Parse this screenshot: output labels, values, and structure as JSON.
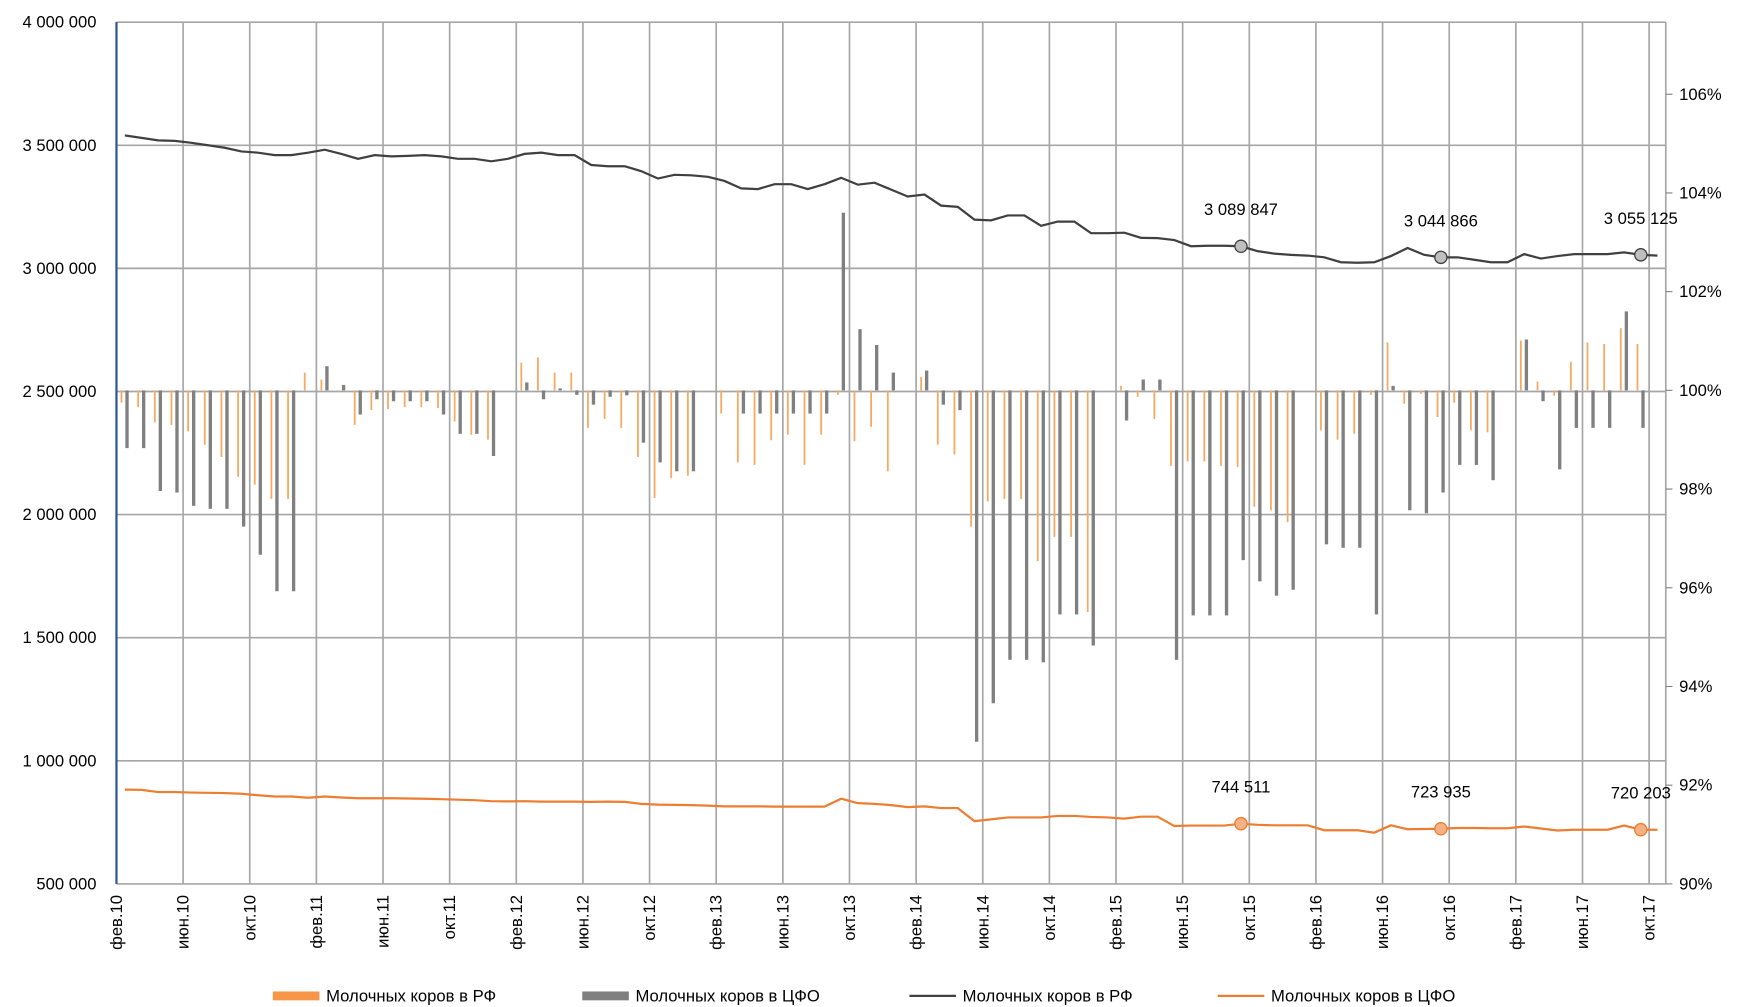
{
  "chart_data": {
    "type": "bar",
    "categories": [
      "фев.10",
      null,
      null,
      null,
      "июн.10",
      null,
      null,
      null,
      "окт.10",
      null,
      null,
      null,
      "фев.11",
      null,
      null,
      null,
      "июн.11",
      null,
      null,
      null,
      "окт.11",
      null,
      null,
      null,
      "фев.12",
      null,
      null,
      null,
      "июн.12",
      null,
      null,
      null,
      "окт.12",
      null,
      null,
      null,
      "фев.13",
      null,
      null,
      null,
      "июн.13",
      null,
      null,
      null,
      "окт.13",
      null,
      null,
      null,
      "фев.14",
      null,
      null,
      null,
      "июн.14",
      null,
      null,
      null,
      "окт.14",
      null,
      null,
      null,
      "фев.15",
      null,
      null,
      null,
      "июн.15",
      null,
      null,
      null,
      "окт.15",
      null,
      null,
      null,
      "фев.16",
      null,
      null,
      null,
      "июн.16",
      null,
      null,
      null,
      "окт.16",
      null,
      null,
      null,
      "фев.17",
      null,
      null,
      null,
      "июн.17",
      null,
      null,
      null,
      "окт.17"
    ],
    "ylim": [
      500000,
      4000000
    ],
    "yticks": [
      {
        "value": 500000,
        "label": "500 000"
      },
      {
        "value": 1000000,
        "label": "1 000 000"
      },
      {
        "value": 1500000,
        "label": "1 500 000"
      },
      {
        "value": 2000000,
        "label": "2 000 000"
      },
      {
        "value": 2500000,
        "label": "2 500 000"
      },
      {
        "value": 3000000,
        "label": "3 000 000"
      },
      {
        "value": 3500000,
        "label": "3 500 000"
      },
      {
        "value": 4000000,
        "label": "4 000 000"
      }
    ],
    "y2lim": [
      90,
      107.46
    ],
    "y2ticks": [
      {
        "value": 90,
        "label": "90%"
      },
      {
        "value": 92,
        "label": "92%"
      },
      {
        "value": 94,
        "label": "94%"
      },
      {
        "value": 96,
        "label": "96%"
      },
      {
        "value": 98,
        "label": "98%"
      },
      {
        "value": 100,
        "label": "100%"
      },
      {
        "value": 102,
        "label": "102%"
      },
      {
        "value": 104,
        "label": "104%"
      },
      {
        "value": 106,
        "label": "106%"
      }
    ],
    "grid": true,
    "legend": "bottom",
    "series": [
      {
        "name": "Молочных коров в РФ",
        "type": "bar",
        "axis": "y2",
        "color": "#f8a95f",
        "values": [
          99.75,
          99.66,
          99.35,
          99.3,
          99.17,
          98.9,
          98.65,
          98.25,
          98.09,
          97.8,
          97.8,
          100.36,
          100.22,
          99.98,
          99.3,
          99.6,
          99.62,
          99.66,
          99.66,
          99.64,
          99.37,
          99.1,
          99.0,
          100,
          100.56,
          100.67,
          100.36,
          100.36,
          99.24,
          99.42,
          99.24,
          98.65,
          97.82,
          98.22,
          98.27,
          100,
          99.53,
          98.54,
          98.49,
          98.99,
          99.1,
          98.49,
          99.1,
          99.91,
          98.97,
          99.26,
          98.36,
          100,
          100.27,
          98.9,
          98.7,
          97.24,
          97.75,
          97.8,
          97.8,
          96.54,
          97.03,
          97.03,
          95.51,
          100,
          100.09,
          99.87,
          99.42,
          98.47,
          98.56,
          98.56,
          98.47,
          98.45,
          97.64,
          97.57,
          97.33,
          100,
          99.19,
          99.0,
          99.12,
          99.91,
          100.97,
          99.73,
          99.93,
          99.46,
          99.75,
          99.19,
          99.15,
          100,
          101.01,
          100.18,
          99.89,
          100.58,
          100.97,
          100.94,
          101.26,
          100.94,
          100
        ]
      },
      {
        "name": "Молочных коров в ЦФО",
        "type": "bar",
        "axis": "y2",
        "color": "#808080",
        "values": [
          98.83,
          98.83,
          97.96,
          97.93,
          97.66,
          97.6,
          97.6,
          97.24,
          96.67,
          95.93,
          95.93,
          100,
          100.49,
          100.11,
          99.51,
          99.82,
          99.78,
          99.78,
          99.78,
          99.51,
          99.12,
          99.12,
          98.67,
          100,
          100.16,
          99.82,
          100.04,
          99.91,
          99.71,
          99.87,
          99.9,
          98.94,
          98.54,
          98.36,
          98.36,
          100,
          100,
          99.53,
          99.53,
          99.53,
          99.53,
          99.53,
          99.53,
          103.6,
          101.24,
          100.92,
          100.36,
          100,
          100.4,
          99.71,
          99.6,
          92.88,
          93.66,
          94.54,
          94.54,
          94.49,
          95.46,
          95.46,
          94.83,
          100,
          99.39,
          100.22,
          100.22,
          94.54,
          95.44,
          95.44,
          95.44,
          96.56,
          96.13,
          95.84,
          95.96,
          100,
          96.88,
          96.81,
          96.81,
          95.46,
          100.09,
          97.57,
          97.51,
          97.93,
          98.49,
          98.49,
          98.18,
          100,
          101.03,
          99.78,
          98.4,
          99.24,
          99.24,
          99.24,
          101.6,
          99.24,
          100
        ]
      },
      {
        "name": "Молочных коров в РФ",
        "type": "line",
        "color": "#404040",
        "marker_fill": "#bfbfbf",
        "values": [
          3540000,
          3530000,
          3520000,
          3518000,
          3510000,
          3500000,
          3490000,
          3475000,
          3470000,
          3460000,
          3460000,
          3470000,
          3482000,
          3465000,
          3445000,
          3460000,
          3455000,
          3457000,
          3460000,
          3455000,
          3445000,
          3445000,
          3435000,
          3445000,
          3465000,
          3470000,
          3460000,
          3460000,
          3420000,
          3415000,
          3415000,
          3395000,
          3365000,
          3380000,
          3378000,
          3372000,
          3355000,
          3325000,
          3322000,
          3342000,
          3342000,
          3322000,
          3342000,
          3368000,
          3340000,
          3348000,
          3320000,
          3292000,
          3300000,
          3255000,
          3250000,
          3198000,
          3195000,
          3215000,
          3215000,
          3173000,
          3190000,
          3190000,
          3143000,
          3143000,
          3145000,
          3124000,
          3123000,
          3115000,
          3090000,
          3092000,
          3092000,
          3089847,
          3070000,
          3060000,
          3055000,
          3052000,
          3045000,
          3025000,
          3023000,
          3025000,
          3050000,
          3083000,
          3055000,
          3044866,
          3045000,
          3035000,
          3025000,
          3025000,
          3058000,
          3040000,
          3050000,
          3058000,
          3058000,
          3058000,
          3065000,
          3055125,
          3052000
        ],
        "value_labels": [
          null,
          null,
          null,
          null,
          null,
          null,
          null,
          null,
          null,
          null,
          null,
          null,
          null,
          null,
          null,
          null,
          null,
          null,
          null,
          null,
          null,
          null,
          null,
          null,
          null,
          null,
          null,
          null,
          null,
          null,
          null,
          null,
          null,
          null,
          null,
          null,
          null,
          null,
          null,
          null,
          null,
          null,
          null,
          null,
          null,
          null,
          null,
          null,
          null,
          null,
          null,
          null,
          null,
          null,
          null,
          null,
          null,
          null,
          null,
          null,
          null,
          null,
          null,
          null,
          null,
          null,
          null,
          "3 089 847",
          null,
          null,
          null,
          null,
          null,
          null,
          null,
          null,
          null,
          null,
          null,
          "3 044 866",
          null,
          null,
          null,
          null,
          null,
          null,
          null,
          null,
          null,
          null,
          null,
          "3 055 125",
          null
        ]
      },
      {
        "name": "Молочных коров в ЦФО",
        "type": "line",
        "color": "#ed7d31",
        "marker_fill": "#f4b183",
        "values": [
          883000,
          882000,
          873000,
          873000,
          871000,
          870000,
          869000,
          866000,
          860000,
          855000,
          855000,
          850000,
          855000,
          851000,
          848000,
          848000,
          848000,
          847000,
          846000,
          844000,
          842000,
          840000,
          836000,
          835000,
          836000,
          834000,
          834000,
          834000,
          833000,
          834000,
          833000,
          825000,
          822000,
          821000,
          820000,
          818000,
          815000,
          815000,
          815000,
          814000,
          814000,
          814000,
          814000,
          846000,
          828000,
          825000,
          820000,
          812000,
          815000,
          808000,
          808000,
          755000,
          762000,
          770000,
          770000,
          770000,
          776000,
          776000,
          772000,
          770000,
          765000,
          773000,
          773000,
          735000,
          737000,
          737000,
          737000,
          744511,
          740000,
          738000,
          738000,
          738000,
          718000,
          718000,
          718000,
          708000,
          738000,
          722000,
          723000,
          723935,
          727000,
          727000,
          726000,
          726000,
          733000,
          725000,
          717000,
          720000,
          720000,
          720000,
          737000,
          720203,
          720000
        ],
        "value_labels": [
          null,
          null,
          null,
          null,
          null,
          null,
          null,
          null,
          null,
          null,
          null,
          null,
          null,
          null,
          null,
          null,
          null,
          null,
          null,
          null,
          null,
          null,
          null,
          null,
          null,
          null,
          null,
          null,
          null,
          null,
          null,
          null,
          null,
          null,
          null,
          null,
          null,
          null,
          null,
          null,
          null,
          null,
          null,
          null,
          null,
          null,
          null,
          null,
          null,
          null,
          null,
          null,
          null,
          null,
          null,
          null,
          null,
          null,
          null,
          null,
          null,
          null,
          null,
          null,
          null,
          null,
          null,
          "744 511",
          null,
          null,
          null,
          null,
          null,
          null,
          null,
          null,
          null,
          null,
          null,
          "723 935",
          null,
          null,
          null,
          null,
          null,
          null,
          null,
          null,
          null,
          null,
          null,
          "720 203",
          null
        ]
      }
    ]
  }
}
